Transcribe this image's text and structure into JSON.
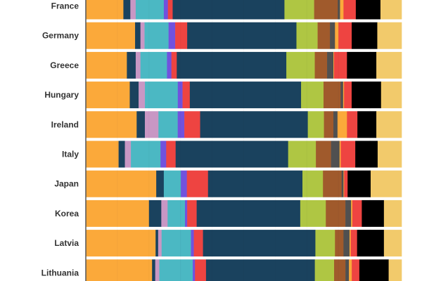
{
  "chart_data": {
    "type": "bar",
    "orientation": "horizontal",
    "stacked": "percent",
    "xlim": [
      0,
      100
    ],
    "grid": true,
    "categories": [
      "France",
      "Germany",
      "Greece",
      "Hungary",
      "Ireland",
      "Italy",
      "Japan",
      "Korea",
      "Latvia",
      "Lithuania"
    ],
    "series_colors": [
      "#FBA93A",
      "#1A425E",
      "#C897C4",
      "#4BB8C3",
      "#7152DE",
      "#EE4441",
      "#1A425E",
      "#AFC643",
      "#A05A2C",
      "#505050",
      "#FBA93A",
      "#EE4441",
      "#000000",
      "#F2CA6B"
    ],
    "values": [
      [
        11.9,
        2.2,
        1.7,
        8.9,
        1.3,
        1.5,
        35.4,
        9.4,
        7.5,
        0.7,
        1.1,
        3.9,
        7.8,
        6.7
      ],
      [
        15.6,
        1.7,
        1.3,
        7.6,
        2.1,
        3.8,
        34.6,
        6.7,
        3.9,
        1.6,
        1.1,
        4.2,
        8.1,
        7.7
      ],
      [
        13.0,
        2.8,
        1.5,
        8.4,
        1.4,
        1.7,
        34.7,
        9.0,
        3.9,
        2.0,
        0.2,
        4.1,
        9.3,
        8.0
      ],
      [
        13.9,
        2.8,
        2.0,
        10.4,
        1.5,
        2.3,
        35.2,
        7.1,
        5.4,
        0.8,
        0.3,
        2.4,
        9.3,
        6.5
      ],
      [
        16.1,
        2.6,
        4.3,
        6.1,
        2.1,
        5.0,
        34.1,
        5.1,
        3.0,
        1.3,
        3.0,
        3.3,
        6.0,
        8.0
      ],
      [
        10.4,
        2.0,
        1.9,
        9.4,
        1.8,
        3.0,
        35.7,
        8.8,
        4.8,
        2.7,
        0.4,
        4.6,
        7.1,
        7.6
      ],
      [
        22.3,
        2.4,
        0.0,
        5.4,
        1.9,
        6.7,
        29.9,
        6.5,
        5.9,
        0.6,
        0.2,
        1.1,
        7.3,
        9.8
      ],
      [
        20.0,
        3.9,
        2.0,
        5.5,
        0.7,
        3.0,
        32.8,
        8.1,
        6.2,
        1.8,
        0.4,
        3.0,
        7.0,
        5.6
      ],
      [
        22.1,
        0.8,
        1.1,
        9.3,
        0.9,
        2.9,
        35.6,
        6.2,
        2.7,
        1.9,
        0.4,
        2.0,
        8.5,
        5.6
      ],
      [
        21.0,
        1.0,
        1.3,
        10.6,
        0.7,
        3.5,
        34.5,
        6.1,
        3.6,
        1.1,
        0.9,
        2.4,
        9.3,
        4.1
      ]
    ]
  }
}
